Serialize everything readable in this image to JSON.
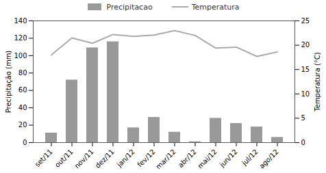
{
  "chart_data": {
    "type": "bar",
    "categories": [
      "set/11",
      "out/11",
      "nov/11",
      "dez/11",
      "jan/12",
      "fev/12",
      "mar/12",
      "abr/12",
      "mai/12",
      "jun/12",
      "jul/12",
      "ago/12"
    ],
    "series": [
      {
        "name": "Precipitacao",
        "type": "bar",
        "color": "#999999",
        "values": [
          11,
          72,
          109,
          116,
          17,
          29,
          12,
          1,
          28,
          22,
          18,
          6
        ]
      },
      {
        "name": "Temperatura",
        "type": "line",
        "color": "#aaaaaa",
        "axis": "y2",
        "values": [
          18,
          21.5,
          20.4,
          22.2,
          21.8,
          22.1,
          23,
          22,
          19.4,
          19.6,
          17.7,
          18.6
        ]
      }
    ],
    "ylabel": "Precipitação (mm)",
    "y2label": "Temperatura (°C)",
    "ylim": [
      0,
      140
    ],
    "yticks": [
      0,
      20,
      40,
      60,
      80,
      100,
      120,
      140
    ],
    "y2lim": [
      0,
      25
    ],
    "y2ticks": [
      0,
      5,
      10,
      15,
      20,
      25
    ],
    "legend": "top"
  }
}
